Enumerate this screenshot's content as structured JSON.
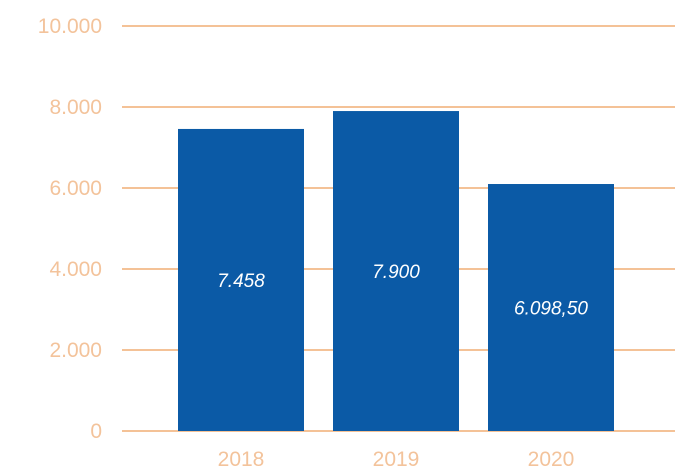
{
  "chart_data": {
    "type": "bar",
    "title": "",
    "xlabel": "",
    "ylabel": "",
    "categories": [
      "2018",
      "2019",
      "2020"
    ],
    "values": [
      7458,
      7900,
      6098.5
    ],
    "data_labels": [
      "7.458",
      "7.900",
      "6.098,50"
    ],
    "ylim": [
      0,
      10000
    ],
    "y_ticks": [
      {
        "value": 0,
        "label": "0"
      },
      {
        "value": 2000,
        "label": "2.000"
      },
      {
        "value": 4000,
        "label": "4.000"
      },
      {
        "value": 6000,
        "label": "6.000"
      },
      {
        "value": 8000,
        "label": "8.000"
      },
      {
        "value": 10000,
        "label": "10.000"
      }
    ],
    "grid": true,
    "legend": "none"
  },
  "colors": {
    "bar": "#0b5aa6",
    "grid": "#e8852f",
    "tick_label": "#f3c39b",
    "data_label": "#ffffff"
  }
}
